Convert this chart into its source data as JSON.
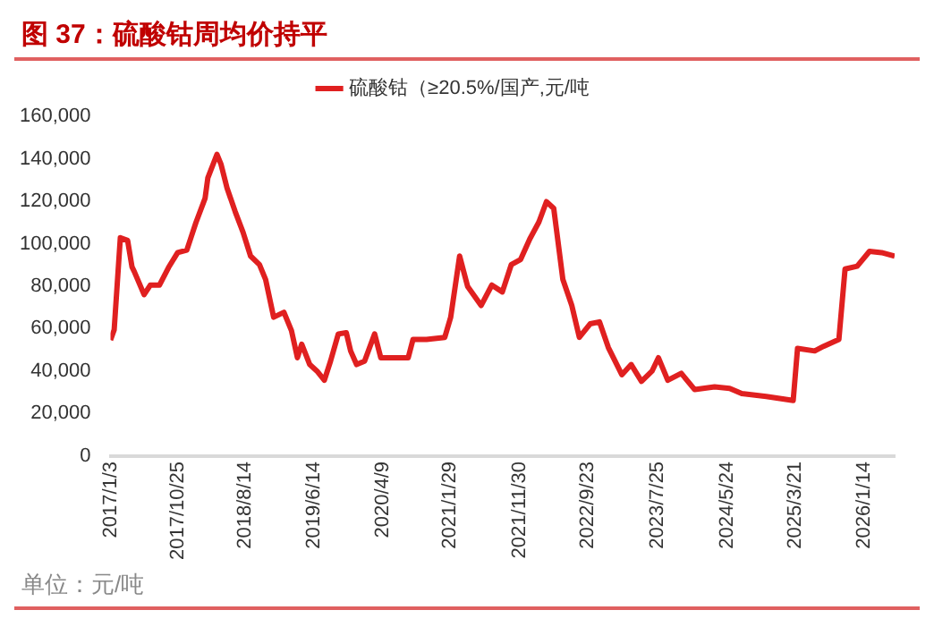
{
  "chart_data": {
    "type": "line",
    "title": "图 37：硫酸钴周均价持平",
    "legend": "top",
    "grid": false,
    "marker": "none",
    "line_style": "solid",
    "x": [
      "2017-01-03",
      "2017-01-19",
      "2017-02-15",
      "2017-03-19",
      "2017-04-07",
      "2017-04-17",
      "2017-05-30",
      "2017-06-26",
      "2017-08-05",
      "2017-09-14",
      "2017-10-24",
      "2017-12-03",
      "2018-01-12",
      "2018-02-21",
      "2018-03-05",
      "2018-04-14",
      "2018-05-02",
      "2018-05-28",
      "2018-07-03",
      "2018-08-06",
      "2018-09-08",
      "2018-10-17",
      "2018-11-13",
      "2018-12-18",
      "2019-02-01",
      "2019-03-06",
      "2019-04-01",
      "2019-04-20",
      "2019-05-25",
      "2019-06-26",
      "2019-07-28",
      "2019-08-24",
      "2019-09-27",
      "2019-11-01",
      "2019-11-20",
      "2019-12-16",
      "2020-01-20",
      "2020-03-04",
      "2020-03-31",
      "2020-06-06",
      "2020-07-29",
      "2020-08-19",
      "2020-10-17",
      "2021-01-05",
      "2021-01-31",
      "2021-03-11",
      "2021-04-15",
      "2021-06-13",
      "2021-07-30",
      "2021-09-14",
      "2021-10-23",
      "2021-12-03",
      "2022-01-12",
      "2022-02-21",
      "2022-03-26",
      "2022-04-27",
      "2022-06-06",
      "2022-07-15",
      "2022-08-17",
      "2022-10-04",
      "2022-11-13",
      "2022-12-22",
      "2023-02-19",
      "2023-04-01",
      "2023-05-16",
      "2023-07-01",
      "2023-07-29",
      "2023-09-08",
      "2023-11-06",
      "2024-01-04",
      "2024-03-31",
      "2024-06-05",
      "2024-07-28",
      "2024-11-12",
      "2025-03-10",
      "2025-03-29",
      "2025-06-12",
      "2025-07-21",
      "2025-09-26",
      "2025-10-23",
      "2025-12-15",
      "2026-02-07",
      "2026-04-01",
      "2026-05-28"
    ],
    "series": [
      {
        "name": "硫酸钴（≥20.5%/国产,元/吨",
        "color": "#e02020",
        "values": [
          54600,
          59400,
          102800,
          101500,
          89100,
          86900,
          76000,
          80500,
          80500,
          88800,
          95800,
          97000,
          110000,
          121400,
          131000,
          142100,
          137300,
          126200,
          115000,
          105400,
          94200,
          90100,
          83100,
          65400,
          67700,
          59100,
          46300,
          52700,
          43100,
          40000,
          35700,
          44700,
          57500,
          58100,
          49500,
          43100,
          44700,
          57500,
          46300,
          46300,
          46300,
          54900,
          54900,
          55900,
          65400,
          94200,
          79900,
          70900,
          80500,
          77300,
          90100,
          92600,
          102200,
          110200,
          119800,
          116600,
          83100,
          70900,
          55900,
          62300,
          63200,
          51100,
          38300,
          43100,
          35200,
          40000,
          46300,
          35700,
          39000,
          31300,
          32600,
          31900,
          29400,
          28100,
          26200,
          50700,
          49500,
          51700,
          54900,
          88100,
          89400,
          96400,
          95800,
          94200
        ]
      }
    ],
    "xlim": [
      "2017-01-03",
      "2026-05-28"
    ],
    "xticks": [
      {
        "value": "2017-01-03",
        "label": "2017/1/3"
      },
      {
        "value": "2017-10-25",
        "label": "2017/10/25"
      },
      {
        "value": "2018-08-14",
        "label": "2018/8/14"
      },
      {
        "value": "2019-06-14",
        "label": "2019/6/14"
      },
      {
        "value": "2020-04-09",
        "label": "2020/4/9"
      },
      {
        "value": "2021-01-29",
        "label": "2021/1/29"
      },
      {
        "value": "2021-11-30",
        "label": "2021/11/30"
      },
      {
        "value": "2022-09-23",
        "label": "2022/9/23"
      },
      {
        "value": "2023-07-25",
        "label": "2023/7/25"
      },
      {
        "value": "2024-05-24",
        "label": "2024/5/24"
      },
      {
        "value": "2025-03-21",
        "label": "2025/3/21"
      },
      {
        "value": "2026-01-14",
        "label": "2026/1/14"
      }
    ],
    "ylim": [
      0,
      160000
    ],
    "yticks": [
      {
        "value": 0,
        "label": "0"
      },
      {
        "value": 20000,
        "label": "20,000"
      },
      {
        "value": 40000,
        "label": "40,000"
      },
      {
        "value": 60000,
        "label": "60,000"
      },
      {
        "value": 80000,
        "label": "80,000"
      },
      {
        "value": 100000,
        "label": "100,000"
      },
      {
        "value": 120000,
        "label": "120,000"
      },
      {
        "value": 140000,
        "label": "140,000"
      },
      {
        "value": 160000,
        "label": "160,000"
      }
    ],
    "annotations": [
      "单位：元/吨"
    ]
  }
}
